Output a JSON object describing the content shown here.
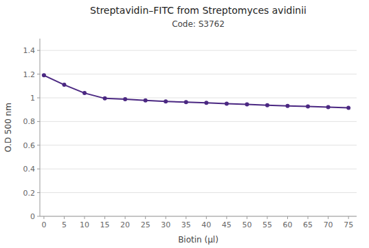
{
  "chart_data": {
    "type": "line",
    "title": "Streptavidin–FITC from Streptomyces avidinii",
    "subtitle": "Code: S3762",
    "x_label": "Biotin (µl)",
    "y_label": "O.D 500 nm",
    "x": [
      0,
      5,
      10,
      15,
      20,
      25,
      30,
      35,
      40,
      45,
      50,
      55,
      60,
      65,
      70,
      75
    ],
    "values": [
      1.19,
      1.11,
      1.04,
      0.995,
      0.988,
      0.978,
      0.97,
      0.963,
      0.958,
      0.95,
      0.945,
      0.938,
      0.932,
      0.928,
      0.922,
      0.915
    ],
    "color": "#4b2882",
    "marker": "circle",
    "xlim": [
      -1,
      77
    ],
    "ylim": [
      0,
      1.5
    ],
    "xticks": [
      0,
      5,
      10,
      15,
      20,
      25,
      30,
      35,
      40,
      45,
      50,
      55,
      60,
      65,
      70,
      75
    ],
    "yticks": [
      0,
      0.2,
      0.4,
      0.6,
      0.8,
      1,
      1.2,
      1.4
    ],
    "grid": true
  }
}
